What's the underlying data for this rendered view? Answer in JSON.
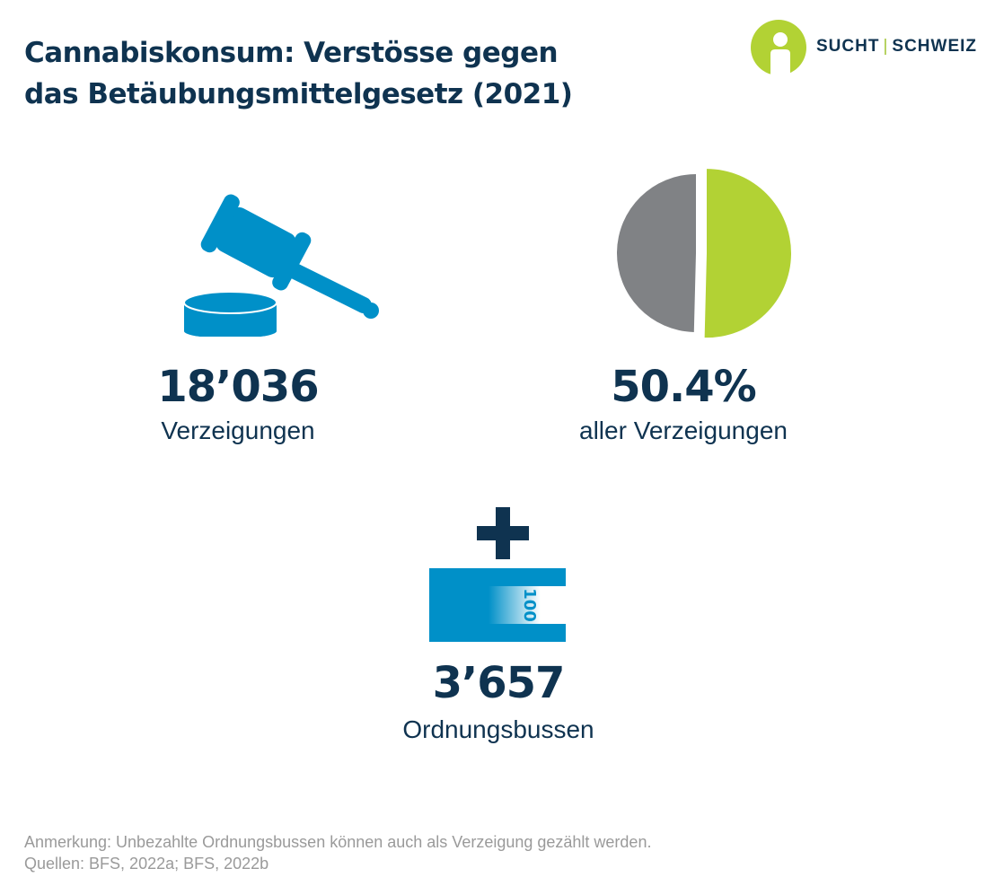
{
  "title": {
    "line1": "Cannabiskonsum: Verstösse gegen",
    "line2": "das Betäubungsmittelgesetz (2021)"
  },
  "logo": {
    "left_text": "SUCHT",
    "separator": "|",
    "right_text": "SCHWEIZ",
    "icon": "person-circle-logo"
  },
  "stats": {
    "reports": {
      "value": "18’036",
      "label": "Verzeigungen",
      "icon": "gavel-icon"
    },
    "share": {
      "value": "50.4%",
      "label": "aller Verzeigungen"
    },
    "fines": {
      "value": "3’657",
      "label": "Ordnungsbussen",
      "icon": "banknote-icon",
      "note_value": "100"
    }
  },
  "chart_data": {
    "type": "pie",
    "slices": [
      {
        "value": 50.4,
        "color": "#b2d234",
        "highlighted": true
      },
      {
        "value": 49.6,
        "color": "#808285"
      }
    ]
  },
  "notes": {
    "line1": "Anmerkung: Unbezahlte Ordnungsbussen können auch als Verzeigung gezählt werden.",
    "line2": "Quellen: BFS, 2022a; BFS, 2022b"
  },
  "colors": {
    "navy": "#0f3350",
    "blue": "#0090c8",
    "green": "#b2d234",
    "gray": "#808285",
    "note_gray": "#9a9a9a"
  }
}
